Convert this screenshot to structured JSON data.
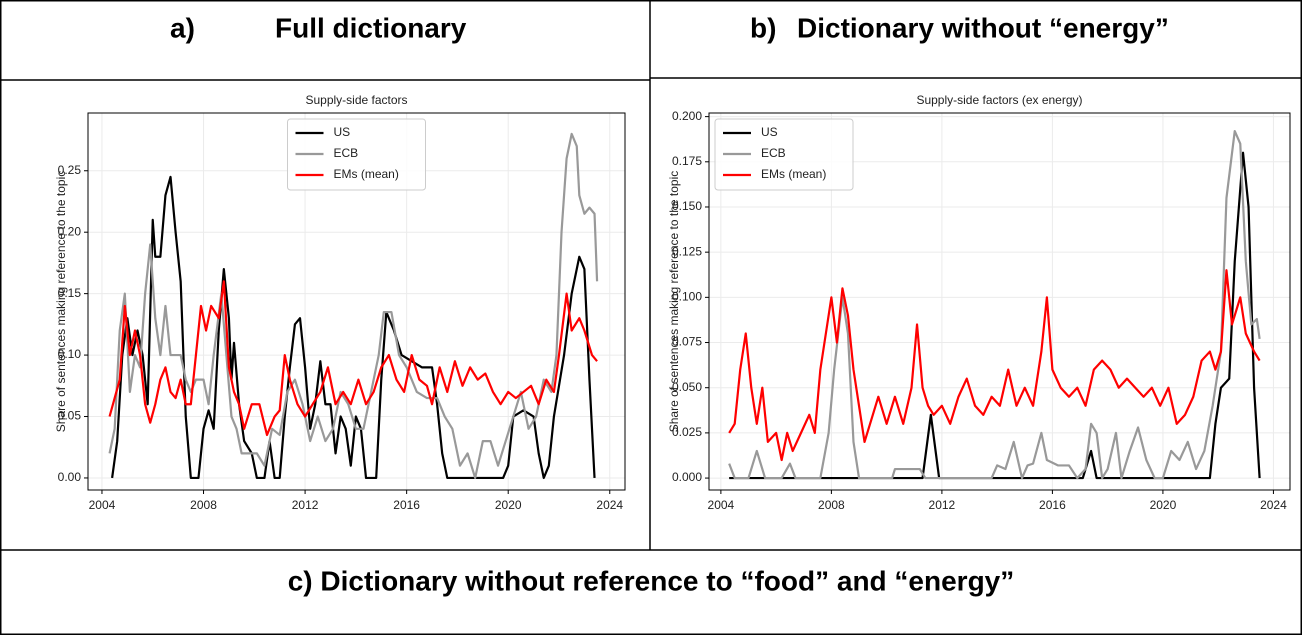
{
  "headers": {
    "a_label": "a)",
    "a_title": "Full dictionary",
    "b_label": "b)",
    "b_title": "Dictionary without “energy”",
    "c_title": "c) Dictionary without reference to “food” and “energy”"
  },
  "chart_data": [
    {
      "type": "line",
      "title": "Supply-side factors",
      "y_label": "Share of sentences making reference to the topic",
      "xlim": [
        2003.45,
        2024.6
      ],
      "ylim": [
        -0.0098,
        0.297
      ],
      "xticks": [
        2004,
        2008,
        2012,
        2016,
        2020,
        2024
      ],
      "yticks": [
        {
          "value": 0,
          "label": "0.00"
        },
        {
          "value": 0.05,
          "label": "0.05"
        },
        {
          "value": 0.1,
          "label": "0.10"
        },
        {
          "value": 0.15,
          "label": "0.15"
        },
        {
          "value": 0.2,
          "label": "0.20"
        },
        {
          "value": 0.25,
          "label": "0.25"
        }
      ],
      "grid": true,
      "legend": "upper center",
      "series": [
        {
          "name": "US",
          "color": "#000000",
          "x": [
            2004.4,
            2004.6,
            2004.8,
            2005.0,
            2005.2,
            2005.4,
            2005.6,
            2005.8,
            2006.0,
            2006.1,
            2006.3,
            2006.5,
            2006.7,
            2006.9,
            2007.1,
            2007.3,
            2007.5,
            2007.8,
            2008.0,
            2008.2,
            2008.4,
            2008.6,
            2008.8,
            2009.0,
            2009.1,
            2009.2,
            2009.4,
            2009.6,
            2009.9,
            2010.1,
            2010.4,
            2010.6,
            2010.8,
            2011.0,
            2011.2,
            2011.4,
            2011.6,
            2011.8,
            2012.0,
            2012.2,
            2012.4,
            2012.6,
            2012.8,
            2013.0,
            2013.2,
            2013.4,
            2013.6,
            2013.8,
            2014.0,
            2014.2,
            2014.4,
            2014.8,
            2015.0,
            2015.2,
            2015.5,
            2015.8,
            2016.2,
            2016.6,
            2017.0,
            2017.2,
            2017.4,
            2017.6,
            2019.8,
            2020.0,
            2020.2,
            2020.6,
            2021.0,
            2021.2,
            2021.4,
            2021.6,
            2021.8,
            2022.2,
            2022.5,
            2022.8,
            2023.0,
            2023.2,
            2023.4
          ],
          "values": [
            0,
            0.03,
            0.1,
            0.13,
            0.1,
            0.12,
            0.1,
            0.06,
            0.21,
            0.18,
            0.18,
            0.23,
            0.245,
            0.2,
            0.16,
            0.05,
            0,
            0,
            0.04,
            0.055,
            0.04,
            0.12,
            0.17,
            0.13,
            0.08,
            0.11,
            0.06,
            0.03,
            0.02,
            0,
            0,
            0.03,
            0,
            0,
            0.05,
            0.09,
            0.125,
            0.13,
            0.09,
            0.04,
            0.06,
            0.095,
            0.06,
            0.06,
            0.02,
            0.05,
            0.04,
            0.01,
            0.05,
            0.04,
            0,
            0,
            0.08,
            0.135,
            0.12,
            0.1,
            0.095,
            0.09,
            0.09,
            0.06,
            0.02,
            0,
            0,
            0.01,
            0.05,
            0.055,
            0.05,
            0.02,
            0,
            0.01,
            0.05,
            0.1,
            0.15,
            0.18,
            0.17,
            0.08,
            0
          ]
        },
        {
          "name": "ECB",
          "color": "#999999",
          "x": [
            2004.3,
            2004.5,
            2004.7,
            2004.9,
            2005.1,
            2005.3,
            2005.5,
            2005.7,
            2005.9,
            2006.1,
            2006.3,
            2006.5,
            2006.7,
            2006.9,
            2007.1,
            2007.3,
            2007.5,
            2007.7,
            2008.0,
            2008.2,
            2008.4,
            2008.7,
            2008.9,
            2009.1,
            2009.3,
            2009.5,
            2009.8,
            2010.1,
            2010.4,
            2010.7,
            2011.0,
            2011.3,
            2011.6,
            2011.9,
            2012.2,
            2012.5,
            2012.8,
            2013.1,
            2013.4,
            2013.7,
            2014.0,
            2014.3,
            2014.6,
            2014.9,
            2015.1,
            2015.4,
            2015.7,
            2016.0,
            2016.4,
            2016.8,
            2017.2,
            2017.5,
            2017.8,
            2018.1,
            2018.4,
            2018.7,
            2019.0,
            2019.3,
            2019.6,
            2019.9,
            2020.2,
            2020.5,
            2020.8,
            2021.1,
            2021.4,
            2021.7,
            2021.9,
            2022.1,
            2022.3,
            2022.5,
            2022.7,
            2022.8,
            2023.0,
            2023.2,
            2023.4,
            2023.5
          ],
          "values": [
            0.02,
            0.04,
            0.12,
            0.15,
            0.07,
            0.1,
            0.09,
            0.15,
            0.19,
            0.13,
            0.1,
            0.14,
            0.1,
            0.1,
            0.1,
            0.08,
            0.07,
            0.08,
            0.08,
            0.06,
            0.1,
            0.15,
            0.1,
            0.05,
            0.04,
            0.02,
            0.02,
            0.02,
            0.01,
            0.04,
            0.035,
            0.07,
            0.08,
            0.06,
            0.03,
            0.05,
            0.03,
            0.04,
            0.07,
            0.06,
            0.04,
            0.04,
            0.07,
            0.1,
            0.135,
            0.135,
            0.1,
            0.09,
            0.07,
            0.065,
            0.065,
            0.05,
            0.04,
            0.01,
            0.02,
            0,
            0.03,
            0.03,
            0.01,
            0.03,
            0.05,
            0.07,
            0.04,
            0.05,
            0.08,
            0.07,
            0.1,
            0.2,
            0.26,
            0.28,
            0.27,
            0.23,
            0.215,
            0.22,
            0.215,
            0.16
          ]
        },
        {
          "name": "EMs (mean)",
          "color": "#ff0000",
          "x": [
            2004.3,
            2004.5,
            2004.7,
            2004.9,
            2005.1,
            2005.3,
            2005.5,
            2005.7,
            2005.9,
            2006.1,
            2006.3,
            2006.5,
            2006.7,
            2006.9,
            2007.1,
            2007.3,
            2007.5,
            2007.7,
            2007.9,
            2008.1,
            2008.3,
            2008.6,
            2008.8,
            2009.0,
            2009.2,
            2009.4,
            2009.6,
            2009.9,
            2010.2,
            2010.5,
            2010.8,
            2011.0,
            2011.2,
            2011.4,
            2011.7,
            2012.0,
            2012.3,
            2012.6,
            2012.9,
            2013.2,
            2013.5,
            2013.8,
            2014.1,
            2014.4,
            2014.7,
            2015.0,
            2015.3,
            2015.6,
            2015.9,
            2016.2,
            2016.5,
            2016.8,
            2017.0,
            2017.3,
            2017.6,
            2017.9,
            2018.2,
            2018.5,
            2018.8,
            2019.1,
            2019.4,
            2019.7,
            2020.0,
            2020.3,
            2020.6,
            2020.9,
            2021.2,
            2021.5,
            2021.8,
            2022.0,
            2022.3,
            2022.5,
            2022.8,
            2023.0,
            2023.3,
            2023.5
          ],
          "values": [
            0.05,
            0.065,
            0.08,
            0.14,
            0.1,
            0.12,
            0.1,
            0.06,
            0.045,
            0.06,
            0.08,
            0.09,
            0.07,
            0.065,
            0.08,
            0.06,
            0.06,
            0.1,
            0.14,
            0.12,
            0.14,
            0.13,
            0.16,
            0.09,
            0.07,
            0.06,
            0.04,
            0.06,
            0.06,
            0.035,
            0.05,
            0.055,
            0.1,
            0.08,
            0.06,
            0.05,
            0.06,
            0.07,
            0.09,
            0.06,
            0.07,
            0.06,
            0.08,
            0.06,
            0.07,
            0.09,
            0.1,
            0.08,
            0.07,
            0.1,
            0.08,
            0.075,
            0.06,
            0.09,
            0.07,
            0.095,
            0.075,
            0.09,
            0.08,
            0.085,
            0.07,
            0.06,
            0.07,
            0.065,
            0.07,
            0.075,
            0.06,
            0.08,
            0.07,
            0.1,
            0.15,
            0.12,
            0.13,
            0.12,
            0.1,
            0.095
          ]
        }
      ]
    },
    {
      "type": "line",
      "title": "Supply-side factors (ex energy)",
      "y_label": "Share of sentences making reference to the topic",
      "xlim": [
        2003.57,
        2024.6
      ],
      "ylim": [
        -0.0066,
        0.202
      ],
      "xticks": [
        2004,
        2008,
        2012,
        2016,
        2020,
        2024
      ],
      "yticks": [
        {
          "value": 0,
          "label": "0.000"
        },
        {
          "value": 0.025,
          "label": "0.025"
        },
        {
          "value": 0.05,
          "label": "0.050"
        },
        {
          "value": 0.075,
          "label": "0.075"
        },
        {
          "value": 0.1,
          "label": "0.100"
        },
        {
          "value": 0.125,
          "label": "0.125"
        },
        {
          "value": 0.15,
          "label": "0.150"
        },
        {
          "value": 0.175,
          "label": "0.175"
        },
        {
          "value": 0.2,
          "label": "0.200"
        }
      ],
      "grid": true,
      "legend": "upper left",
      "series": [
        {
          "name": "US",
          "color": "#000000",
          "x": [
            2004.3,
            2011.3,
            2011.6,
            2011.9,
            2017.1,
            2017.4,
            2017.6,
            2021.7,
            2021.9,
            2022.1,
            2022.4,
            2022.6,
            2022.9,
            2023.1,
            2023.3,
            2023.5
          ],
          "values": [
            0,
            0,
            0.035,
            0,
            0,
            0.015,
            0,
            0,
            0.03,
            0.05,
            0.055,
            0.12,
            0.18,
            0.15,
            0.05,
            0
          ]
        },
        {
          "name": "ECB",
          "color": "#999999",
          "x": [
            2004.3,
            2004.5,
            2005.0,
            2005.3,
            2005.6,
            2006.2,
            2006.5,
            2006.7,
            2007.6,
            2007.9,
            2008.1,
            2008.4,
            2008.6,
            2008.8,
            2009.0,
            2010.2,
            2010.3,
            2010.6,
            2010.9,
            2011.2,
            2011.4,
            2013.8,
            2014.0,
            2014.3,
            2014.6,
            2014.9,
            2015.1,
            2015.3,
            2015.6,
            2015.8,
            2016.2,
            2016.6,
            2016.9,
            2017.2,
            2017.4,
            2017.6,
            2017.8,
            2018.0,
            2018.3,
            2018.5,
            2018.8,
            2019.1,
            2019.4,
            2019.7,
            2020.0,
            2020.3,
            2020.6,
            2020.9,
            2021.2,
            2021.5,
            2021.8,
            2022.1,
            2022.3,
            2022.6,
            2022.8,
            2023.0,
            2023.2,
            2023.4,
            2023.5
          ],
          "values": [
            0.008,
            0,
            0,
            0.015,
            0,
            0,
            0.008,
            0,
            0,
            0.025,
            0.06,
            0.1,
            0.08,
            0.02,
            0,
            0,
            0.005,
            0.005,
            0.005,
            0.005,
            0,
            0,
            0.007,
            0.005,
            0.02,
            0,
            0.007,
            0.008,
            0.025,
            0.01,
            0.007,
            0.007,
            0,
            0.005,
            0.03,
            0.025,
            0,
            0.005,
            0.025,
            0,
            0.015,
            0.028,
            0.01,
            0,
            0,
            0.015,
            0.01,
            0.02,
            0.005,
            0.015,
            0.04,
            0.07,
            0.155,
            0.192,
            0.185,
            0.12,
            0.085,
            0.088,
            0.077
          ]
        },
        {
          "name": "EMs (mean)",
          "color": "#ff0000",
          "x": [
            2004.3,
            2004.5,
            2004.7,
            2004.9,
            2005.1,
            2005.3,
            2005.5,
            2005.7,
            2006.0,
            2006.2,
            2006.4,
            2006.6,
            2006.9,
            2007.2,
            2007.4,
            2007.6,
            2007.8,
            2008.0,
            2008.2,
            2008.4,
            2008.6,
            2008.8,
            2009.0,
            2009.2,
            2009.5,
            2009.7,
            2010.0,
            2010.3,
            2010.6,
            2010.9,
            2011.1,
            2011.3,
            2011.5,
            2011.7,
            2012.0,
            2012.3,
            2012.6,
            2012.9,
            2013.2,
            2013.5,
            2013.8,
            2014.1,
            2014.4,
            2014.7,
            2015.0,
            2015.3,
            2015.6,
            2015.8,
            2016.0,
            2016.3,
            2016.6,
            2016.9,
            2017.2,
            2017.5,
            2017.8,
            2018.1,
            2018.4,
            2018.7,
            2019.0,
            2019.3,
            2019.6,
            2019.9,
            2020.2,
            2020.5,
            2020.8,
            2021.1,
            2021.4,
            2021.7,
            2021.9,
            2022.1,
            2022.3,
            2022.5,
            2022.8,
            2023.0,
            2023.3,
            2023.5
          ],
          "values": [
            0.025,
            0.03,
            0.06,
            0.08,
            0.05,
            0.03,
            0.05,
            0.02,
            0.025,
            0.01,
            0.025,
            0.015,
            0.025,
            0.035,
            0.025,
            0.06,
            0.08,
            0.1,
            0.075,
            0.105,
            0.09,
            0.06,
            0.04,
            0.02,
            0.035,
            0.045,
            0.03,
            0.045,
            0.03,
            0.05,
            0.085,
            0.05,
            0.04,
            0.035,
            0.04,
            0.03,
            0.045,
            0.055,
            0.04,
            0.035,
            0.045,
            0.04,
            0.06,
            0.04,
            0.05,
            0.04,
            0.07,
            0.1,
            0.06,
            0.05,
            0.045,
            0.05,
            0.04,
            0.06,
            0.065,
            0.06,
            0.05,
            0.055,
            0.05,
            0.045,
            0.05,
            0.04,
            0.05,
            0.03,
            0.035,
            0.045,
            0.065,
            0.07,
            0.06,
            0.07,
            0.115,
            0.085,
            0.1,
            0.08,
            0.07,
            0.065
          ]
        }
      ]
    }
  ]
}
